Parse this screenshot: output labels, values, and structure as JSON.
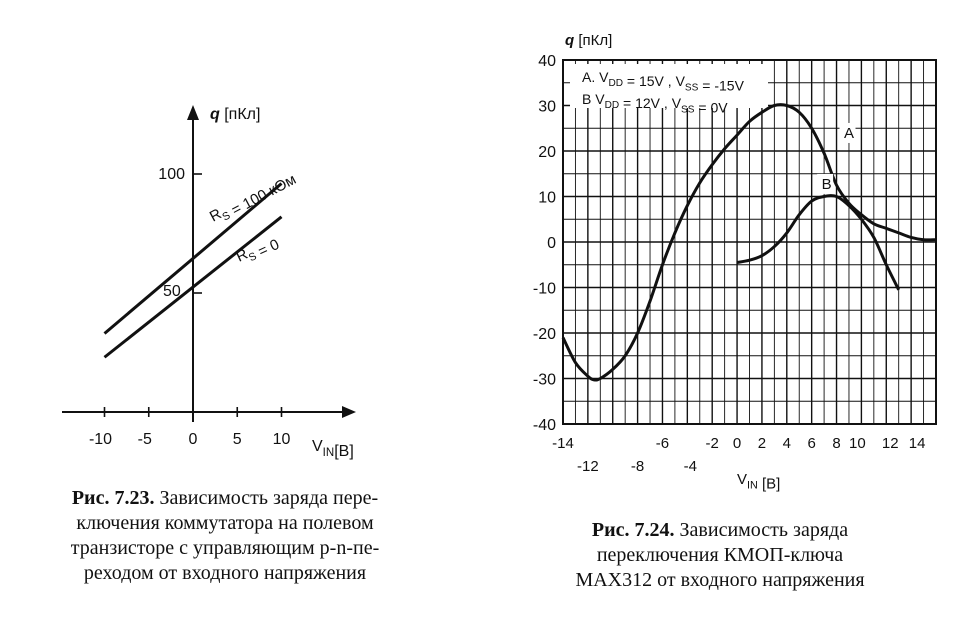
{
  "figure1": {
    "caption": {
      "number": "Рис. 7.23.",
      "lines": [
        "Зависимость заряда пере-",
        "ключения коммутатора на полевом",
        "транзисторе с управляющим p-n-пе-",
        "реходом от входного напряжения"
      ]
    }
  },
  "figure2": {
    "caption": {
      "number": "Рис. 7.24.",
      "lines": [
        "Зависимость заряда",
        "переключения КМОП-ключа",
        "MAX312 от входного напряжения"
      ]
    }
  },
  "chart_data": [
    {
      "type": "line",
      "title": "",
      "xlabel": "V_IN[B]",
      "ylabel": "q [пКл]",
      "x_ticks": [
        "-10",
        "-5",
        "0",
        "5",
        "10"
      ],
      "y_ticks": [
        "50",
        "100"
      ],
      "xlim": [
        -12,
        13
      ],
      "ylim": [
        -10,
        130
      ],
      "grid": false,
      "series": [
        {
          "name": "R_S = 100 кОм",
          "x": [
            -10,
            10
          ],
          "y": [
            33,
            96
          ]
        },
        {
          "name": "R_S = 0",
          "x": [
            -10,
            10
          ],
          "y": [
            23,
            82
          ]
        }
      ]
    },
    {
      "type": "line",
      "title": "",
      "xlabel": "V_IN [B]",
      "ylabel": "q [пКл]",
      "x_ticks": [
        "-14",
        "-12",
        "-8",
        "-6",
        "-4",
        "-2",
        "0",
        "2",
        "4",
        "6",
        "8",
        "10",
        "12",
        "14"
      ],
      "y_ticks": [
        "40",
        "30",
        "20",
        "10",
        "0",
        "-10",
        "-20",
        "-30",
        "-40"
      ],
      "xlim": [
        -14,
        16
      ],
      "ylim": [
        -40,
        40
      ],
      "grid": true,
      "legend": {
        "A": "A. V_DD = 15V , V_SS = -15V",
        "B": "B  V_DD = 12V , V_SS = 0V"
      },
      "series": [
        {
          "name": "A",
          "x": [
            -14,
            -13,
            -12,
            -11.5,
            -11,
            -10,
            -9,
            -8,
            -7,
            -6,
            -5,
            -4,
            -3,
            -2,
            -1,
            0,
            1,
            2,
            3,
            4,
            5,
            6,
            7,
            8,
            9,
            10,
            11,
            12,
            13,
            14,
            15,
            16
          ],
          "y": [
            -21,
            -26.5,
            -29.5,
            -30.3,
            -30,
            -28,
            -25,
            -20,
            -13,
            -5,
            2,
            8,
            13,
            17,
            20.5,
            23.5,
            26.5,
            28.5,
            30,
            30,
            28.5,
            25,
            19.5,
            12.5,
            8.5,
            6,
            4,
            3,
            2,
            1,
            0.5,
            0.5
          ]
        },
        {
          "name": "B",
          "x": [
            0,
            1,
            2,
            3,
            4,
            5,
            6,
            7,
            8,
            9,
            10,
            11,
            12,
            13
          ],
          "y": [
            -4.5,
            -4,
            -3,
            -1,
            2,
            6,
            9,
            10,
            10,
            8,
            5,
            1,
            -5,
            -10.5
          ]
        }
      ]
    }
  ]
}
